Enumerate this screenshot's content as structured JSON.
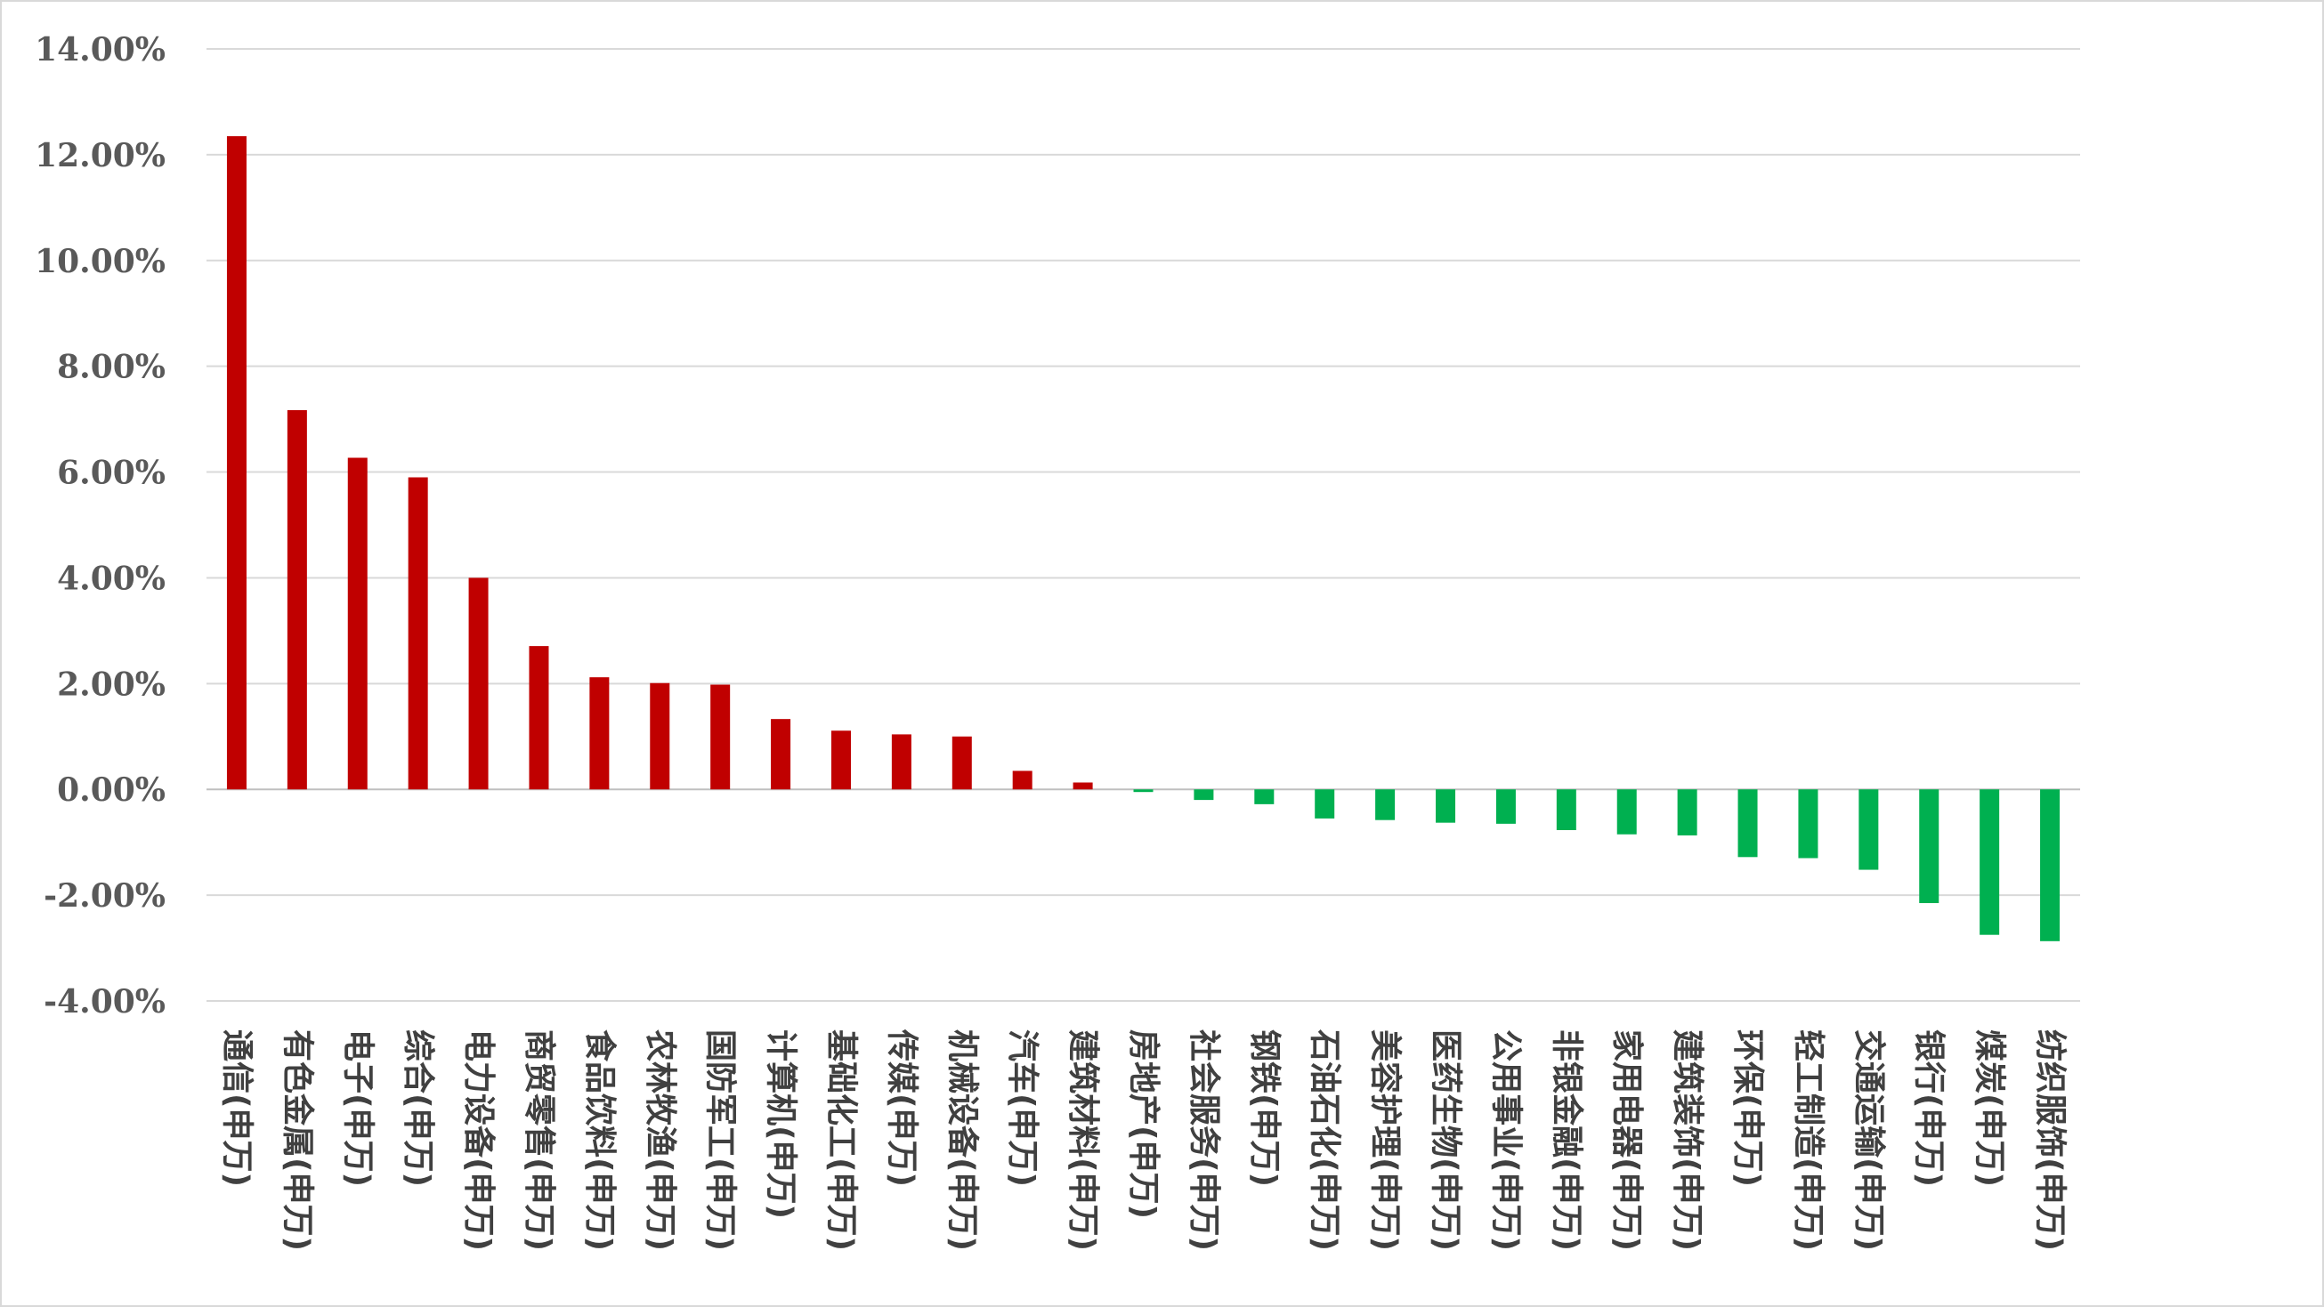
{
  "chart_data": {
    "type": "bar",
    "title": "",
    "xlabel": "",
    "ylabel": "",
    "ylim": [
      -4,
      14
    ],
    "yticks": [
      -4,
      -2,
      0,
      2,
      4,
      6,
      8,
      10,
      12,
      14
    ],
    "ytick_labels": [
      "-4.00%",
      "-2.00%",
      "0.00%",
      "2.00%",
      "4.00%",
      "6.00%",
      "8.00%",
      "10.00%",
      "12.00%",
      "14.00%"
    ],
    "grid": true,
    "legend": "none",
    "colors": {
      "positive": "#c00000",
      "negative": "#00b050"
    },
    "categories": [
      "通信(申万)",
      "有色金属(申万)",
      "电子(申万)",
      "综合(申万)",
      "电力设备(申万)",
      "商贸零售(申万)",
      "食品饮料(申万)",
      "农林牧渔(申万)",
      "国防军工(申万)",
      "计算机(申万)",
      "基础化工(申万)",
      "传媒(申万)",
      "机械设备(申万)",
      "汽车(申万)",
      "建筑材料(申万)",
      "房地产(申万)",
      "社会服务(申万)",
      "钢铁(申万)",
      "石油石化(申万)",
      "美容护理(申万)",
      "医药生物(申万)",
      "公用事业(申万)",
      "非银金融(申万)",
      "家用电器(申万)",
      "建筑装饰(申万)",
      "环保(申万)",
      "轻工制造(申万)",
      "交通运输(申万)",
      "银行(申万)",
      "煤炭(申万)",
      "纺织服饰(申万)"
    ],
    "values": [
      12.35,
      7.17,
      6.27,
      5.9,
      4.0,
      2.71,
      2.12,
      2.01,
      1.98,
      1.33,
      1.11,
      1.04,
      1.0,
      0.35,
      0.13,
      -0.05,
      -0.2,
      -0.28,
      -0.55,
      -0.58,
      -0.63,
      -0.65,
      -0.77,
      -0.85,
      -0.87,
      -1.28,
      -1.3,
      -1.52,
      -2.15,
      -2.75,
      -2.87
    ]
  }
}
